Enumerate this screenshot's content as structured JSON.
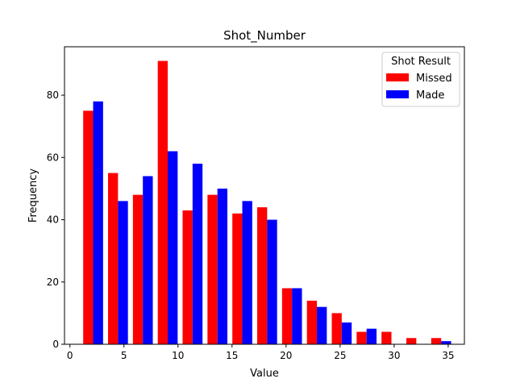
{
  "chart_data": {
    "type": "bar",
    "title": "Shot_Number",
    "xlabel": "Value",
    "ylabel": "Frequency",
    "xlim": [
      -0.5,
      36.5
    ],
    "ylim": [
      0,
      95.55
    ],
    "xticks": [
      0,
      5,
      10,
      15,
      20,
      25,
      30,
      35
    ],
    "yticks": [
      0,
      20,
      40,
      60,
      80
    ],
    "bin_edges": [
      1,
      3.3,
      5.6,
      7.9,
      10.2,
      12.5,
      14.8,
      17.1,
      19.4,
      21.7,
      24,
      26.3,
      28.6,
      30.9,
      33.2,
      35.5
    ],
    "grid": false,
    "legend": {
      "title": "Shot Result",
      "placement": "top-right"
    },
    "series": [
      {
        "name": "Missed",
        "color": "#ff0000",
        "values": [
          75,
          55,
          48,
          91,
          43,
          48,
          42,
          44,
          18,
          14,
          10,
          4,
          4,
          2,
          2
        ]
      },
      {
        "name": "Made",
        "color": "#0000ff",
        "values": [
          78,
          46,
          54,
          62,
          58,
          50,
          46,
          40,
          18,
          12,
          7,
          5,
          0,
          0,
          1
        ]
      }
    ]
  }
}
